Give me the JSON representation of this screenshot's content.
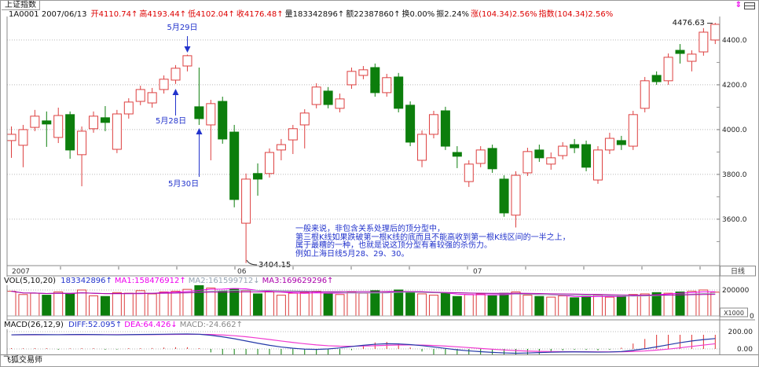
{
  "colors": {
    "up": "#dd3f3f",
    "down": "#0c7e0c",
    "annotation_blue": "#2233cc",
    "header_red": "#dd0000",
    "magenta": "#ee00ee",
    "grid": "#b9b9b9"
  },
  "header": {
    "title": "上证指数",
    "info_segments": [
      {
        "text": "1A0001 2007/06/13 ",
        "color": "#111111"
      },
      {
        "text": "开4110.74↑",
        "color": "#dd0000"
      },
      {
        "text": "高4193.44↑",
        "color": "#dd0000"
      },
      {
        "text": "低4102.04↑",
        "color": "#dd0000"
      },
      {
        "text": "收4176.48↑",
        "color": "#dd0000"
      },
      {
        "text": "量183342896↑",
        "color": "#111111"
      },
      {
        "text": "额22387860↑",
        "color": "#111111"
      },
      {
        "text": "换0.00%",
        "color": "#111111"
      },
      {
        "text": "振2.24%",
        "color": "#111111"
      },
      {
        "text": "涨(104.34)2.56%",
        "color": "#dd0000"
      },
      {
        "text": "指数(104.34)2.56%",
        "color": "#dd0000"
      }
    ],
    "icons": [
      "updown-arrows-icon",
      "window-split-icon"
    ]
  },
  "price_axis": {
    "labels": [
      "4400.0",
      "4200.0",
      "4000.0",
      "3800.0",
      "3600.0"
    ]
  },
  "x_axis": {
    "labels": [
      "2007",
      "06",
      "07"
    ],
    "period_label": "日线"
  },
  "annotations": {
    "date_top": "5月29日",
    "date_left": "5月28日",
    "date_bottom": "5月30日",
    "low_label": "3404.15",
    "high_label": "4476.63",
    "note_lines": [
      "一般来说，非包含关系处理后的顶分型中，",
      "第三根K线如果跌破第一根K线的底而且不能高收到第一根K线区间的一半之上，",
      "属于最糟的一种，也就是说这顶分型有着较强的杀伤力。",
      "例如上海日线5月28、29、30。"
    ]
  },
  "volume_pane": {
    "header_segments": [
      {
        "text": "VOL(5,10,20) ",
        "color": "#111111"
      },
      {
        "text": "183342896↑",
        "color": "#2233cc"
      },
      {
        "text": "MA1:158476912↑",
        "color": "#ee00ee"
      },
      {
        "text": "MA2:161599712↓",
        "color": "#96a5b4"
      },
      {
        "text": "MA3:169629296↑",
        "color": "#aa00aa"
      }
    ],
    "axis_labels": [
      "200000",
      "0"
    ],
    "multiplier": "X1000"
  },
  "macd_pane": {
    "header_segments": [
      {
        "text": "MACD(26,12,9) ",
        "color": "#111111"
      },
      {
        "text": "DIFF:52.095↑",
        "color": "#2233cc"
      },
      {
        "text": "DEA:64.426↓",
        "color": "#ee00ee"
      },
      {
        "text": "MACD:-24.662↑",
        "color": "#888888"
      }
    ],
    "axis_labels": [
      "200.00",
      "0.00"
    ]
  },
  "status_bar": {
    "text": "飞狐交易师"
  },
  "chart_data": {
    "type": "candlestick",
    "title": "上证指数 1A0001 日线",
    "ylim": [
      3393,
      4505
    ],
    "highlight": {
      "may28_index": 14,
      "may29_index": 15,
      "may30_index": 16,
      "low_index": 20,
      "last_index": 60
    },
    "candles": [
      [
        3951,
        4014,
        3874,
        3979
      ],
      [
        3930,
        4021,
        3832,
        4000
      ],
      [
        4010,
        4088,
        3993,
        4060
      ],
      [
        4039,
        4081,
        3923,
        4025
      ],
      [
        3965,
        4098,
        3940,
        4063
      ],
      [
        4067,
        4081,
        3870,
        3909
      ],
      [
        3888,
        4014,
        3747,
        3993
      ],
      [
        4004,
        4081,
        3986,
        4060
      ],
      [
        4053,
        4105,
        3993,
        4032
      ],
      [
        3912,
        4088,
        3895,
        4070
      ],
      [
        4070,
        4140,
        4049,
        4123
      ],
      [
        4126,
        4196,
        4109,
        4179
      ],
      [
        4119,
        4186,
        4098,
        4165
      ],
      [
        4179,
        4242,
        4161,
        4225
      ],
      [
        4221,
        4288,
        4204,
        4274
      ],
      [
        4284,
        4335,
        4260,
        4330
      ],
      [
        4102,
        4277,
        4021,
        4049
      ],
      [
        4021,
        4133,
        3863,
        4116
      ],
      [
        4126,
        4147,
        3937,
        3958
      ],
      [
        3989,
        4021,
        3653,
        3688
      ],
      [
        3582,
        3804,
        3404.15,
        3779
      ],
      [
        3804,
        3849,
        3705,
        3779
      ],
      [
        3804,
        3916,
        3786,
        3898
      ],
      [
        3909,
        3958,
        3863,
        3933
      ],
      [
        3954,
        4021,
        3891,
        4004
      ],
      [
        4021,
        4091,
        3916,
        4074
      ],
      [
        4112,
        4207,
        4095,
        4190
      ],
      [
        4172,
        4190,
        4095,
        4112
      ],
      [
        4095,
        4161,
        4077,
        4137
      ],
      [
        4200,
        4277,
        4182,
        4260
      ],
      [
        4242,
        4284,
        4225,
        4267
      ],
      [
        4277,
        4295,
        4147,
        4165
      ],
      [
        4165,
        4249,
        4147,
        4232
      ],
      [
        4235,
        4253,
        4077,
        4095
      ],
      [
        4109,
        4126,
        3926,
        3944
      ],
      [
        3863,
        3996,
        3832,
        3979
      ],
      [
        3979,
        4084,
        3961,
        4067
      ],
      [
        4084,
        4102,
        3909,
        3926
      ],
      [
        3898,
        3926,
        3828,
        3881
      ],
      [
        3768,
        3863,
        3744,
        3846
      ],
      [
        3849,
        3926,
        3832,
        3909
      ],
      [
        3916,
        3933,
        3807,
        3825
      ],
      [
        3779,
        3796,
        3611,
        3628
      ],
      [
        3618,
        3814,
        3563,
        3796
      ],
      [
        3807,
        3919,
        3793,
        3902
      ],
      [
        3909,
        3933,
        3856,
        3874
      ],
      [
        3846,
        3898,
        3821,
        3874
      ],
      [
        3884,
        3944,
        3867,
        3926
      ],
      [
        3933,
        3958,
        3895,
        3919
      ],
      [
        3933,
        3951,
        3814,
        3832
      ],
      [
        3775,
        3926,
        3758,
        3909
      ],
      [
        3909,
        3986,
        3891,
        3961
      ],
      [
        3951,
        3972,
        3909,
        3933
      ],
      [
        3926,
        4084,
        3909,
        4067
      ],
      [
        4095,
        4235,
        4077,
        4218
      ],
      [
        4242,
        4260,
        4200,
        4214
      ],
      [
        4218,
        4340,
        4200,
        4323
      ],
      [
        4354,
        4382,
        4295,
        4340
      ],
      [
        4305,
        4354,
        4260,
        4337
      ],
      [
        4347,
        4453,
        4330,
        4435
      ],
      [
        4400,
        4476.63,
        4382,
        4470
      ]
    ],
    "volumes_x1000": [
      190000,
      165000,
      175000,
      160000,
      185000,
      170000,
      200000,
      155000,
      150000,
      180000,
      175000,
      195000,
      170000,
      185000,
      190000,
      205000,
      235000,
      215000,
      190000,
      210000,
      195000,
      170000,
      185000,
      160000,
      175000,
      180000,
      190000,
      170000,
      165000,
      185000,
      175000,
      195000,
      180000,
      200000,
      185000,
      170000,
      160000,
      175000,
      150000,
      165000,
      170000,
      155000,
      175000,
      185000,
      160000,
      150000,
      145000,
      155000,
      140000,
      150000,
      160000,
      145000,
      155000,
      165000,
      170000,
      180000,
      175000,
      185000,
      190000,
      200000,
      183343
    ],
    "macd_diff": [
      163,
      165,
      166,
      165,
      164,
      166,
      167,
      166,
      164,
      163,
      165,
      167,
      168,
      170,
      172,
      173,
      170,
      158,
      140,
      118,
      92,
      66,
      42,
      22,
      8,
      -2,
      -6,
      0,
      12,
      28,
      42,
      54,
      60,
      58,
      50,
      38,
      22,
      6,
      -10,
      -22,
      -32,
      -40,
      -46,
      -50,
      -47,
      -42,
      -38,
      -35,
      -34,
      -35,
      -37,
      -36,
      -30,
      -16,
      2,
      24,
      48,
      72,
      92,
      108,
      120
    ]
  }
}
